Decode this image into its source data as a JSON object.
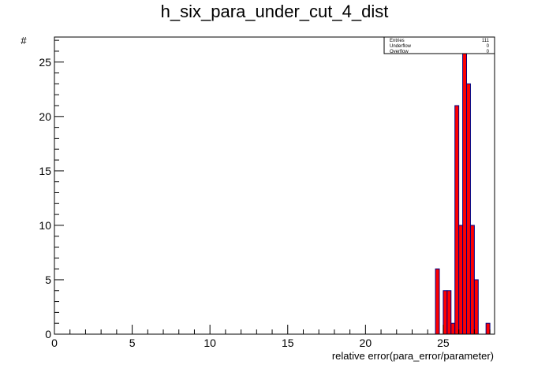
{
  "chart_data": {
    "type": "bar",
    "title": "h_six_para_under_cut_4_dist",
    "xlabel": "relative error(para_error/parameter)",
    "ylabel": "#",
    "xlim": [
      0,
      28.3
    ],
    "ylim": [
      0,
      27.3
    ],
    "x_ticks": [
      0,
      5,
      10,
      15,
      20,
      25
    ],
    "y_ticks": [
      0,
      5,
      10,
      15,
      20,
      25
    ],
    "bin_width": 0.25,
    "bins": [
      {
        "x": 24.5,
        "value": 6
      },
      {
        "x": 25.0,
        "value": 4
      },
      {
        "x": 25.25,
        "value": 4
      },
      {
        "x": 25.5,
        "value": 1
      },
      {
        "x": 25.75,
        "value": 21
      },
      {
        "x": 26.0,
        "value": 10
      },
      {
        "x": 26.25,
        "value": 26
      },
      {
        "x": 26.5,
        "value": 23
      },
      {
        "x": 26.75,
        "value": 10
      },
      {
        "x": 27.0,
        "value": 5
      },
      {
        "x": 27.75,
        "value": 1
      }
    ],
    "fill_color": "#ff0000",
    "line_color": "#000080",
    "grid": false,
    "stats": {
      "entries_label": "Entries",
      "entries": "111",
      "underflow_label": "Underflow",
      "underflow": "0",
      "overflow_label": "Overflow",
      "overflow": "0"
    }
  }
}
